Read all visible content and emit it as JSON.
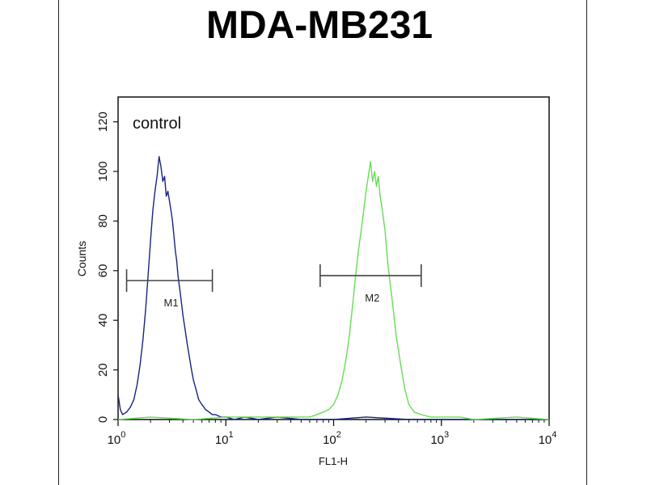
{
  "chart_data": {
    "type": "line",
    "title": "MDA-MB231",
    "xlabel": "FL1-H",
    "ylabel": "Counts",
    "x_scale": "log",
    "xlim": [
      1,
      10000
    ],
    "ylim": [
      0,
      130
    ],
    "x_ticks": [
      {
        "base": "10",
        "exp": "0",
        "value": 1
      },
      {
        "base": "10",
        "exp": "1",
        "value": 10
      },
      {
        "base": "10",
        "exp": "2",
        "value": 100
      },
      {
        "base": "10",
        "exp": "3",
        "value": 1000
      },
      {
        "base": "10",
        "exp": "4",
        "value": 10000
      }
    ],
    "y_ticks": [
      "0",
      "20",
      "40",
      "60",
      "80",
      "100",
      "120"
    ],
    "y_tick_values": [
      0,
      20,
      40,
      60,
      80,
      100,
      120
    ],
    "annotation": "control",
    "markers": [
      {
        "label": "M1",
        "x_start": 1.2,
        "x_end": 7.5,
        "y": 56
      },
      {
        "label": "M2",
        "x_start": 75,
        "x_end": 650,
        "y": 58
      }
    ],
    "series": [
      {
        "color": "#1a237e",
        "x": [
          1.0,
          1.05,
          1.1,
          1.2,
          1.3,
          1.4,
          1.5,
          1.6,
          1.7,
          1.8,
          1.9,
          2.0,
          2.1,
          2.2,
          2.3,
          2.4,
          2.5,
          2.6,
          2.7,
          2.8,
          2.9,
          3.0,
          3.1,
          3.2,
          3.3,
          3.4,
          3.5,
          3.6,
          3.8,
          4.0,
          4.2,
          4.4,
          4.6,
          4.8,
          5.0,
          5.3,
          5.6,
          6.0,
          6.5,
          7.0,
          7.5,
          8.0,
          9.0,
          10.0,
          12.0,
          15.0,
          20.0,
          30.0,
          50.0,
          100.0,
          200.0,
          500.0,
          1000.0,
          3000.0,
          10000.0
        ],
        "y": [
          10,
          4,
          2,
          3,
          5,
          8,
          14,
          22,
          32,
          44,
          58,
          72,
          84,
          92,
          98,
          106,
          102,
          96,
          98,
          90,
          92,
          88,
          84,
          80,
          74,
          68,
          64,
          58,
          50,
          42,
          36,
          30,
          25,
          20,
          16,
          12,
          8,
          6,
          4,
          3,
          2,
          2,
          1,
          1,
          0,
          1,
          0,
          1,
          0,
          0,
          1,
          0,
          0,
          0,
          0
        ]
      },
      {
        "color": "#66dd55",
        "x": [
          1.0,
          2.0,
          5.0,
          10.0,
          20.0,
          40.0,
          60.0,
          70.0,
          80.0,
          90.0,
          100.0,
          110.0,
          120.0,
          130.0,
          140.0,
          150.0,
          160.0,
          170.0,
          180.0,
          190.0,
          200.0,
          210.0,
          220.0,
          230.0,
          240.0,
          250.0,
          260.0,
          270.0,
          280.0,
          300.0,
          320.0,
          350.0,
          380.0,
          420.0,
          460.0,
          500.0,
          560.0,
          650.0,
          800.0,
          1000.0,
          1500.0,
          2000.0,
          5000.0,
          10000.0
        ],
        "y": [
          0,
          1,
          0,
          1,
          1,
          1,
          1,
          2,
          3,
          4,
          6,
          10,
          16,
          24,
          34,
          46,
          58,
          68,
          76,
          84,
          92,
          98,
          104,
          96,
          100,
          94,
          98,
          90,
          86,
          76,
          62,
          48,
          34,
          22,
          12,
          6,
          3,
          2,
          1,
          1,
          1,
          0,
          1,
          0
        ]
      }
    ]
  }
}
